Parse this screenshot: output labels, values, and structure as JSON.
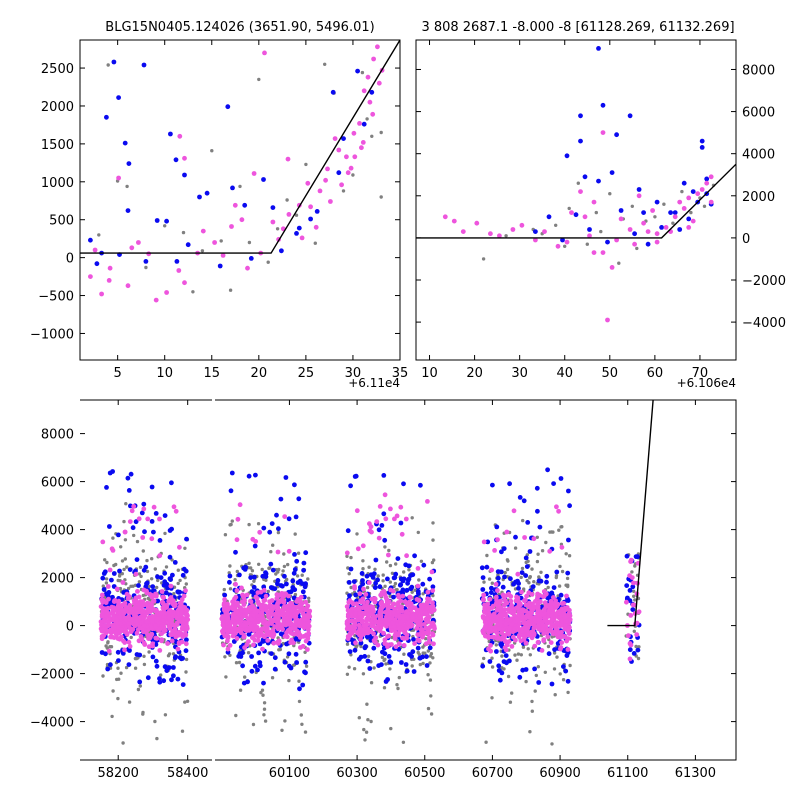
{
  "colors": {
    "series_gray": "#808080",
    "series_blue": "#0a0af0",
    "series_magenta": "#ee55dd",
    "model_line": "#000000"
  },
  "chart_data": [
    {
      "type": "scatter",
      "title": "BLG15N0405.124026 (3651.90, 5496.01)",
      "x_offset_label": "+6.11e4",
      "xlim": [
        1,
        35
      ],
      "ylim": [
        -1350,
        2870
      ],
      "xticks": [
        5,
        10,
        15,
        20,
        25,
        30,
        35
      ],
      "yticks": [
        -1000,
        -500,
        0,
        500,
        1000,
        1500,
        2000,
        2500
      ],
      "ytick_side": "left",
      "model_line": {
        "x": [
          1,
          21.3,
          35
        ],
        "y": [
          60,
          60,
          2870
        ]
      },
      "series": [
        {
          "name": "gray",
          "color": "#808080",
          "points": [
            [
              4,
              2540
            ],
            [
              5,
              1010
            ],
            [
              6,
              940
            ],
            [
              13,
              -450
            ],
            [
              15,
              1410
            ],
            [
              17,
              -430
            ],
            [
              20,
              2350
            ],
            [
              27,
              2550
            ],
            [
              28,
              2170
            ],
            [
              31,
              2440
            ],
            [
              32,
              1600
            ],
            [
              33,
              800
            ],
            [
              10,
              420
            ],
            [
              12,
              330
            ],
            [
              19,
              200
            ],
            [
              24,
              560
            ],
            [
              29,
              880
            ],
            [
              30,
              1090
            ],
            [
              26,
              190
            ],
            [
              22,
              380
            ],
            [
              3,
              300
            ],
            [
              8,
              -130
            ],
            [
              16,
              220
            ],
            [
              18,
              940
            ],
            [
              25,
              1230
            ],
            [
              31.5,
              1830
            ],
            [
              33,
              1650
            ],
            [
              14,
              90
            ],
            [
              21,
              -60
            ],
            [
              23,
              760
            ]
          ]
        },
        {
          "name": "blue",
          "color": "#0a0af0",
          "points": [
            [
              4.6,
              2580
            ],
            [
              7.8,
              2540
            ],
            [
              5.1,
              2110
            ],
            [
              3.8,
              1850
            ],
            [
              5.8,
              1510
            ],
            [
              6.2,
              1240
            ],
            [
              10.6,
              1630
            ],
            [
              11.2,
              1290
            ],
            [
              12.1,
              1090
            ],
            [
              16.7,
              1990
            ],
            [
              18.5,
              690
            ],
            [
              20.5,
              1030
            ],
            [
              6.1,
              620
            ],
            [
              9.2,
              490
            ],
            [
              10.2,
              480
            ],
            [
              13.7,
              800
            ],
            [
              14.5,
              850
            ],
            [
              17.2,
              920
            ],
            [
              2.1,
              230
            ],
            [
              2.8,
              -80
            ],
            [
              5.2,
              40
            ],
            [
              11.3,
              -50
            ],
            [
              15.9,
              -110
            ],
            [
              19.2,
              -10
            ],
            [
              22.4,
              90
            ],
            [
              24.3,
              390
            ],
            [
              26.2,
              610
            ],
            [
              27.9,
              2180
            ],
            [
              30.5,
              2460
            ],
            [
              31.2,
              1760
            ],
            [
              24,
              320
            ],
            [
              28.5,
              1120
            ],
            [
              32,
              2180
            ],
            [
              29,
              1570
            ],
            [
              25.5,
              510
            ],
            [
              21.5,
              660
            ],
            [
              12.5,
              170
            ],
            [
              8,
              -50
            ],
            [
              3.3,
              60
            ]
          ]
        },
        {
          "name": "magenta",
          "color": "#ee55dd",
          "points": [
            [
              2.1,
              -250
            ],
            [
              3.3,
              -480
            ],
            [
              4.2,
              -140
            ],
            [
              6.1,
              -370
            ],
            [
              8.3,
              50
            ],
            [
              9.1,
              -560
            ],
            [
              10.2,
              -460
            ],
            [
              11.5,
              -170
            ],
            [
              12.1,
              -330
            ],
            [
              13.5,
              60
            ],
            [
              15.3,
              200
            ],
            [
              17.1,
              410
            ],
            [
              18.8,
              -140
            ],
            [
              20.2,
              60
            ],
            [
              21.5,
              470
            ],
            [
              22.6,
              380
            ],
            [
              23.2,
              570
            ],
            [
              24.3,
              690
            ],
            [
              25.5,
              670
            ],
            [
              26.5,
              880
            ],
            [
              27.3,
              1170
            ],
            [
              28.5,
              1420
            ],
            [
              29.3,
              1330
            ],
            [
              30.1,
              1640
            ],
            [
              30.7,
              1770
            ],
            [
              31.2,
              2200
            ],
            [
              31.6,
              2380
            ],
            [
              32.2,
              2620
            ],
            [
              32.6,
              2780
            ],
            [
              33.1,
              2470
            ],
            [
              11.6,
              1600
            ],
            [
              12.1,
              1310
            ],
            [
              5.1,
              1050
            ],
            [
              17.5,
              690
            ],
            [
              19.5,
              1110
            ],
            [
              20.6,
              2700
            ],
            [
              23.1,
              1300
            ],
            [
              25.2,
              980
            ],
            [
              27.1,
              1020
            ],
            [
              28.1,
              1570
            ],
            [
              29.5,
              1120
            ],
            [
              30.2,
              1330
            ],
            [
              31.1,
              1520
            ],
            [
              32.1,
              1890
            ],
            [
              7.2,
              200
            ],
            [
              14.1,
              350
            ],
            [
              16.2,
              30
            ],
            [
              18.2,
              500
            ],
            [
              22.1,
              240
            ],
            [
              24.6,
              260
            ],
            [
              26.1,
              400
            ],
            [
              27.6,
              740
            ],
            [
              28.8,
              960
            ],
            [
              29.8,
              1180
            ],
            [
              30.9,
              1450
            ],
            [
              31.8,
              2050
            ],
            [
              32.8,
              2300
            ],
            [
              2.6,
              100
            ],
            [
              4.1,
              -300
            ],
            [
              6.5,
              130
            ]
          ]
        }
      ]
    },
    {
      "type": "scatter",
      "title": "3 808 2687.1 -8.000 -8 [61128.269, 61132.269]",
      "x_offset_label": "+6.106e4",
      "xlim": [
        7,
        78
      ],
      "ylim": [
        -5800,
        9400
      ],
      "xticks": [
        10,
        20,
        30,
        40,
        50,
        60,
        70
      ],
      "yticks": [
        -4000,
        -2000,
        0,
        2000,
        4000,
        6000,
        8000
      ],
      "ytick_side": "right",
      "model_line": {
        "x": [
          7,
          61.5,
          78
        ],
        "y": [
          0,
          0,
          3500
        ]
      },
      "series": [
        {
          "name": "gray",
          "color": "#808080",
          "points": [
            [
              22,
              -1000
            ],
            [
              33,
              400
            ],
            [
              41,
              1400
            ],
            [
              43,
              2600
            ],
            [
              47,
              1200
            ],
            [
              50,
              2100
            ],
            [
              52,
              -1200
            ],
            [
              55,
              1500
            ],
            [
              58,
              800
            ],
            [
              62,
              1600
            ],
            [
              66,
              2200
            ],
            [
              70,
              1900
            ],
            [
              73,
              2500
            ],
            [
              38,
              600
            ],
            [
              45,
              -300
            ],
            [
              48,
              300
            ],
            [
              56,
              -500
            ],
            [
              60,
              1000
            ],
            [
              64,
              700
            ],
            [
              68,
              1200
            ],
            [
              35,
              200
            ],
            [
              40,
              -400
            ],
            [
              53,
              900
            ],
            [
              71,
              1500
            ],
            [
              27,
              100
            ]
          ]
        },
        {
          "name": "blue",
          "color": "#0a0af0",
          "points": [
            [
              47.5,
              9000
            ],
            [
              48.5,
              6300
            ],
            [
              43.5,
              5800
            ],
            [
              51.5,
              4900
            ],
            [
              54.5,
              5800
            ],
            [
              43.5,
              4600
            ],
            [
              40.5,
              3900
            ],
            [
              44.5,
              2900
            ],
            [
              47.5,
              2700
            ],
            [
              50.5,
              3100
            ],
            [
              56.5,
              2300
            ],
            [
              60.5,
              1700
            ],
            [
              63.5,
              1200
            ],
            [
              66.5,
              2600
            ],
            [
              68.5,
              2200
            ],
            [
              70.5,
              4600
            ],
            [
              70.5,
              4300
            ],
            [
              71.5,
              2800
            ],
            [
              72.5,
              1600
            ],
            [
              36.5,
              1000
            ],
            [
              42.5,
              1100
            ],
            [
              52.5,
              1300
            ],
            [
              57.5,
              1200
            ],
            [
              64.5,
              1200
            ],
            [
              69.5,
              1700
            ],
            [
              39.5,
              -100
            ],
            [
              45.5,
              400
            ],
            [
              49.5,
              -200
            ],
            [
              55.5,
              200
            ],
            [
              61.5,
              500
            ],
            [
              67.5,
              900
            ],
            [
              71.5,
              2100
            ],
            [
              65.5,
              400
            ],
            [
              58.5,
              -300
            ],
            [
              33.5,
              300
            ]
          ]
        },
        {
          "name": "magenta",
          "color": "#ee55dd",
          "points": [
            [
              13.5,
              1000
            ],
            [
              15.5,
              800
            ],
            [
              17.5,
              300
            ],
            [
              20.5,
              700
            ],
            [
              23.5,
              200
            ],
            [
              28.5,
              400
            ],
            [
              33.5,
              -100
            ],
            [
              38.5,
              -400
            ],
            [
              43.5,
              2200
            ],
            [
              46.5,
              1700
            ],
            [
              48.5,
              -700
            ],
            [
              50.5,
              -1400
            ],
            [
              49.5,
              -3900
            ],
            [
              52.5,
              900
            ],
            [
              54.5,
              400
            ],
            [
              56.5,
              2000
            ],
            [
              57.5,
              700
            ],
            [
              58.5,
              300
            ],
            [
              59.5,
              1300
            ],
            [
              60.5,
              200
            ],
            [
              62.5,
              500
            ],
            [
              64.5,
              1000
            ],
            [
              65.5,
              1700
            ],
            [
              66.5,
              1400
            ],
            [
              67.5,
              1900
            ],
            [
              68.5,
              800
            ],
            [
              69.5,
              2100
            ],
            [
              70.5,
              2300
            ],
            [
              71.5,
              2600
            ],
            [
              72.5,
              2900
            ],
            [
              41.5,
              1200
            ],
            [
              44.5,
              1000
            ],
            [
              46.5,
              -700
            ],
            [
              48.5,
              5000
            ],
            [
              25.5,
              100
            ],
            [
              30.5,
              600
            ],
            [
              35.5,
              300
            ],
            [
              40.5,
              -200
            ],
            [
              45.5,
              100
            ],
            [
              51.5,
              -100
            ],
            [
              55.5,
              -300
            ],
            [
              60.5,
              -200
            ],
            [
              63.5,
              300
            ],
            [
              67.5,
              500
            ],
            [
              72.5,
              1700
            ]
          ]
        }
      ]
    },
    {
      "type": "scatter",
      "title": "",
      "xlim": [
        58090,
        61420
      ],
      "broken_axis_gap": [
        58470,
        59880
      ],
      "ylim": [
        -5600,
        9400
      ],
      "xticks": [
        58200,
        58400,
        60100,
        60300,
        60500,
        60700,
        60900,
        61100,
        61300
      ],
      "yticks": [
        -4000,
        -2000,
        0,
        2000,
        4000,
        6000,
        8000
      ],
      "ytick_side": "left",
      "model_line": {
        "x": [
          61040,
          61121,
          61175
        ],
        "y": [
          0,
          0,
          9400
        ]
      },
      "seasons": [
        {
          "x_range": [
            58150,
            58400
          ],
          "spread": "dense"
        },
        {
          "x_range": [
            59900,
            60160
          ],
          "spread": "dense"
        },
        {
          "x_range": [
            60270,
            60530
          ],
          "spread": "dense"
        },
        {
          "x_range": [
            60670,
            60930
          ],
          "spread": "dense"
        },
        {
          "x_range": [
            61095,
            61135
          ],
          "spread": "sparse"
        }
      ],
      "series": [
        {
          "name": "gray",
          "color": "#808080",
          "points": []
        },
        {
          "name": "blue",
          "color": "#0a0af0",
          "points": []
        },
        {
          "name": "magenta",
          "color": "#ee55dd",
          "points": []
        }
      ]
    }
  ]
}
